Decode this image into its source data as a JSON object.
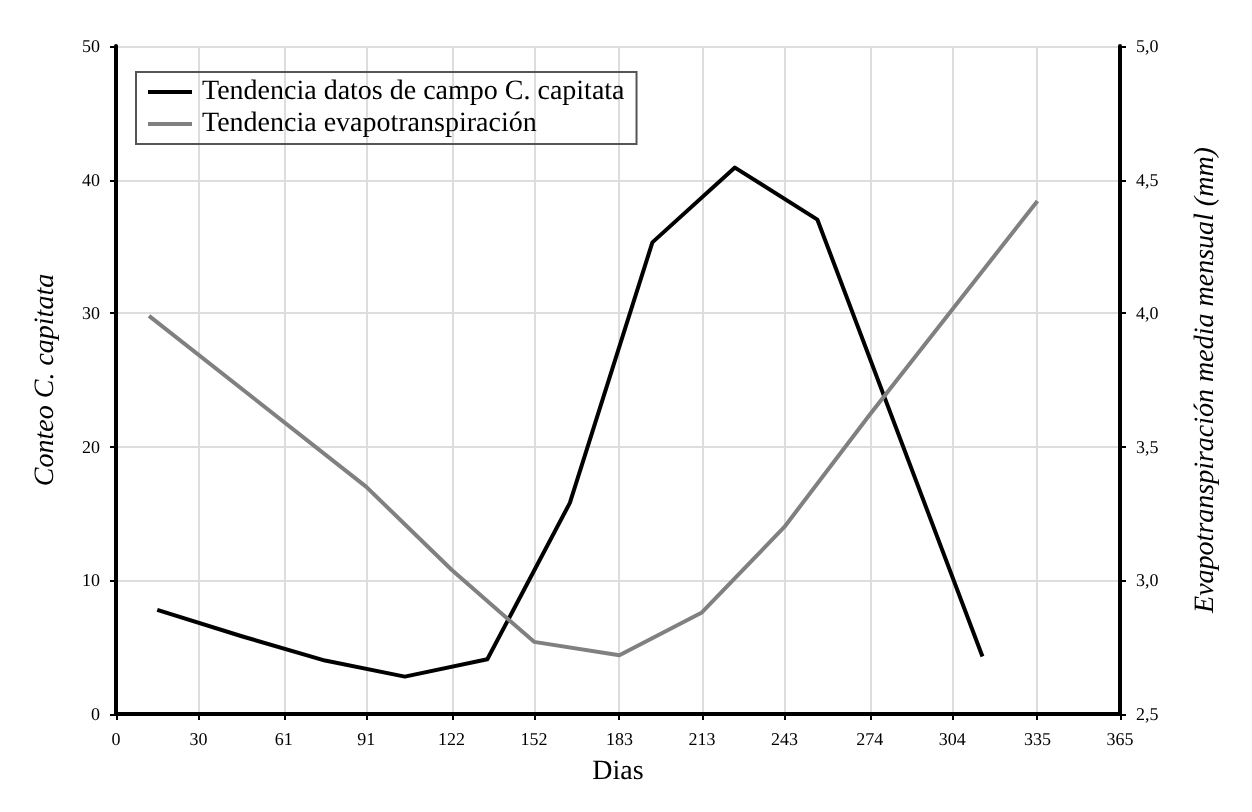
{
  "chart_data": {
    "type": "line",
    "xlabel": "Dias",
    "ylabel": "Conteo C. capitata",
    "y2label": "Evapotranspiración media mensual (mm)",
    "xlim": [
      0,
      365
    ],
    "xticks": [
      0,
      30,
      61,
      91,
      122,
      152,
      183,
      213,
      243,
      274,
      304,
      335,
      365
    ],
    "ylim": [
      0,
      50
    ],
    "yticks": [
      0,
      10,
      20,
      30,
      40,
      50
    ],
    "y2lim": [
      2.5,
      5.0
    ],
    "y2ticks": [
      {
        "value": 2.5,
        "label": "2,5"
      },
      {
        "value": 3.0,
        "label": "3,0"
      },
      {
        "value": 3.5,
        "label": "3,5"
      },
      {
        "value": 4.0,
        "label": "4,0"
      },
      {
        "value": 4.5,
        "label": "4,5"
      },
      {
        "value": 5.0,
        "label": "5,0"
      }
    ],
    "grid": true,
    "legend": "top left",
    "marker": "none",
    "line_style": "solid",
    "series": [
      {
        "name": "Tendencia datos de campo C. capitata",
        "color": "#000000",
        "x": [
          15,
          46,
          76,
          105,
          135,
          165,
          195,
          225,
          255,
          315
        ],
        "values": [
          7.8,
          5.8,
          4.0,
          2.8,
          4.1,
          15.8,
          35.3,
          40.9,
          37.0,
          4.3
        ]
      },
      {
        "name": "Tendencia evapotranspiración",
        "color": "#808080",
        "axis": "y2",
        "x": [
          12,
          91,
          122,
          152,
          183,
          213,
          243,
          274,
          335
        ],
        "values": [
          3.99,
          3.35,
          3.04,
          2.77,
          2.72,
          2.88,
          3.2,
          3.62,
          4.42
        ]
      }
    ]
  }
}
